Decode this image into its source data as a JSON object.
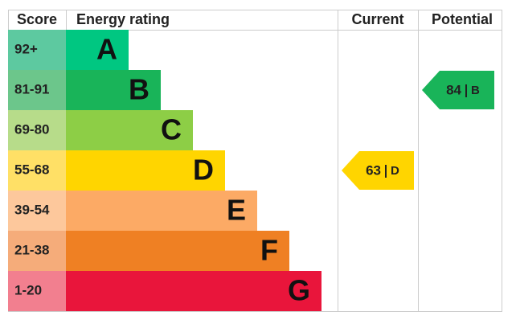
{
  "header": {
    "score": "Score",
    "rating": "Energy rating",
    "current": "Current",
    "potential": "Potential"
  },
  "bands": [
    {
      "score": "92+",
      "letter": "A",
      "color": "#00c781",
      "score_color": "#5dc9a0"
    },
    {
      "score": "81-91",
      "letter": "B",
      "color": "#19b459",
      "score_color": "#6cc68b"
    },
    {
      "score": "69-80",
      "letter": "C",
      "color": "#8dce46",
      "score_color": "#b7dc8a"
    },
    {
      "score": "55-68",
      "letter": "D",
      "color": "#ffd500",
      "score_color": "#ffe066"
    },
    {
      "score": "39-54",
      "letter": "E",
      "color": "#fcaa65",
      "score_color": "#fdc89c"
    },
    {
      "score": "21-38",
      "letter": "F",
      "color": "#ef8023",
      "score_color": "#f5ac7a"
    },
    {
      "score": "1-20",
      "letter": "G",
      "color": "#e9153b",
      "score_color": "#f27f8f"
    }
  ],
  "current": {
    "value": 63,
    "letter": "D"
  },
  "potential": {
    "value": 84,
    "letter": "B"
  }
}
